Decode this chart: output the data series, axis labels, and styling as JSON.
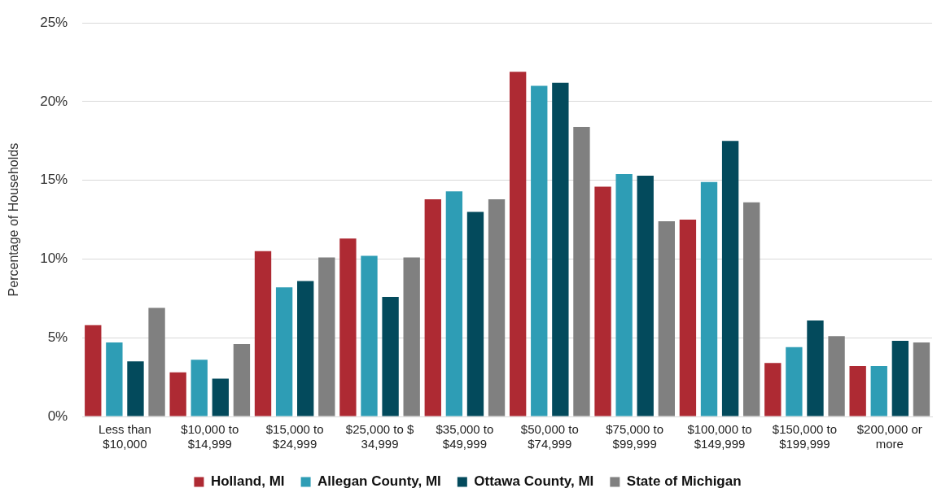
{
  "chart_data": {
    "type": "bar",
    "ylabel": "Percentage of Households",
    "categories": [
      "Less than $10,000",
      "$10,000 to $14,999",
      "$15,000 to $24,999",
      "$25,000 to $ 34,999",
      "$35,000 to $49,999",
      "$50,000 to $74,999",
      "$75,000 to $99,999",
      "$100,000 to $149,999",
      "$150,000 to $199,999",
      "$200,000 or more"
    ],
    "series": [
      {
        "name": "Holland, MI",
        "color": "#ae2a33",
        "values": [
          5.8,
          2.8,
          10.5,
          11.3,
          13.8,
          21.9,
          14.6,
          12.5,
          3.4,
          3.2
        ]
      },
      {
        "name": "Allegan County, MI",
        "color": "#2e9db5",
        "values": [
          4.7,
          3.6,
          8.2,
          10.2,
          14.3,
          21.0,
          15.4,
          14.9,
          4.4,
          3.2
        ]
      },
      {
        "name": "Ottawa County, MI",
        "color": "#034a5c",
        "values": [
          3.5,
          2.4,
          8.6,
          7.6,
          13.0,
          21.2,
          15.3,
          17.5,
          6.1,
          4.8
        ]
      },
      {
        "name": "State of Michigan",
        "color": "#808080",
        "values": [
          6.9,
          4.6,
          10.1,
          10.1,
          13.8,
          18.4,
          12.4,
          13.6,
          5.1,
          4.7
        ]
      }
    ],
    "ylim": [
      0,
      25
    ],
    "yticks": [
      {
        "value": 0,
        "label": "0%"
      },
      {
        "value": 5,
        "label": "5%"
      },
      {
        "value": 10,
        "label": "10%"
      },
      {
        "value": 15,
        "label": "15%"
      },
      {
        "value": 20,
        "label": "20%"
      },
      {
        "value": 25,
        "label": "25%"
      }
    ],
    "grid": "y",
    "legend": "bottom"
  }
}
